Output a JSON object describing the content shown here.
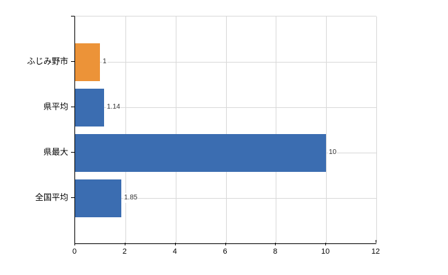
{
  "figure": {
    "background": "#FFFFFF"
  },
  "chart_data": {
    "type": "bar",
    "orientation": "horizontal",
    "title": "",
    "xlabel": "",
    "ylabel": "",
    "categories": [
      "ふじみ野市",
      "県平均",
      "県最大",
      "全国平均"
    ],
    "series": [
      {
        "name": "",
        "values": [
          1,
          1.14,
          10,
          1.85
        ]
      }
    ],
    "value_labels": [
      "1",
      "1.14",
      "10",
      "1.85"
    ],
    "bar_colors": [
      "#EC9338",
      "#3B6DB1",
      "#3B6DB1",
      "#3B6DB1"
    ],
    "xlim": [
      0,
      12
    ],
    "x_ticks": [
      "0",
      "2",
      "4",
      "6",
      "8",
      "10",
      "12"
    ],
    "grid": true,
    "legend": false,
    "gridline_color": "#D9D9D9",
    "axis_color": "#000000",
    "category_label_color": "#000000",
    "tick_label_color": "#000000",
    "value_label_color": "#333333"
  }
}
